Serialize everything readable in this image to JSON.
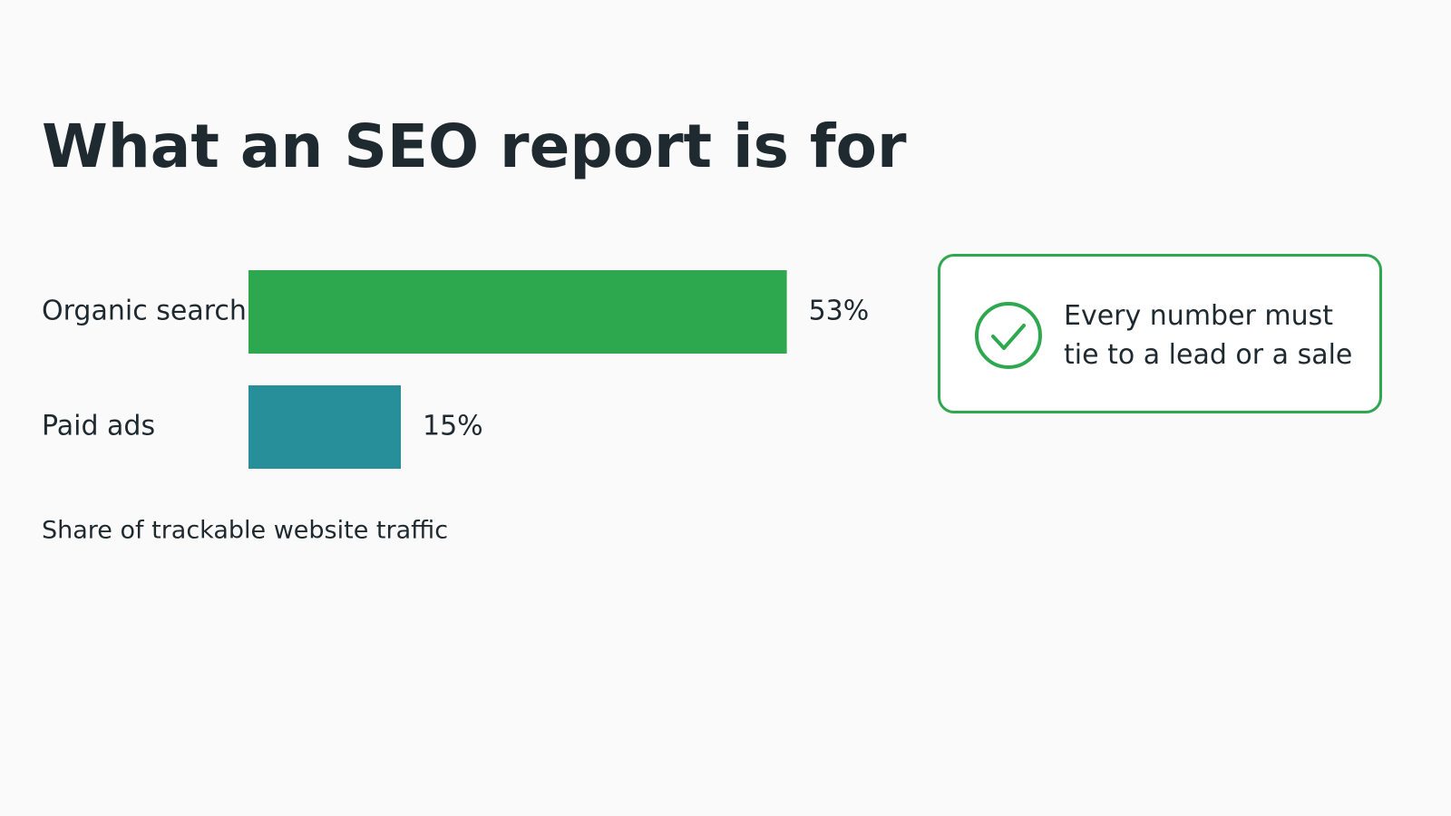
{
  "chart_data": {
    "type": "hbar",
    "title": "What an SEO report is for",
    "categories": [
      "Organic search",
      "Paid ads"
    ],
    "values": [
      53,
      15
    ],
    "value_labels": [
      "53%",
      "15%"
    ],
    "colors": [
      "#2ea84e",
      "#278f99"
    ],
    "caption": "Share of trackable website traffic",
    "annotation": "Every number must tie to a lead or a sale"
  }
}
